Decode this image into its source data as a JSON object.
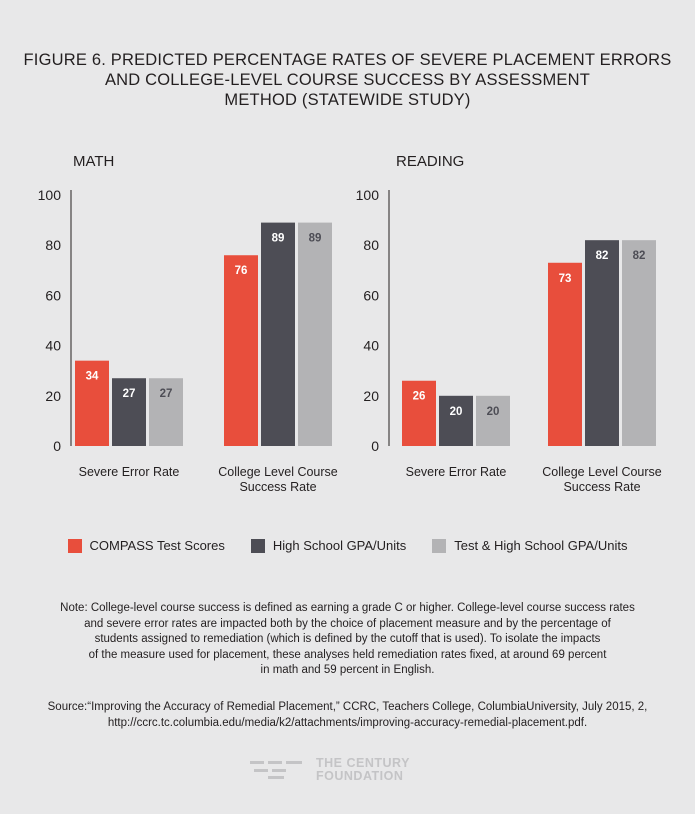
{
  "title_lines": [
    "FIGURE 6. PREDICTED PERCENTAGE RATES OF SEVERE PLACEMENT ERRORS",
    "AND COLLEGE-LEVEL COURSE SUCCESS BY ASSESSMENT",
    "METHOD (STATEWIDE STUDY)"
  ],
  "chart_data": [
    {
      "type": "bar",
      "title": "MATH",
      "categories": [
        [
          "Severe Error Rate"
        ],
        [
          "College Level Course",
          "Success Rate"
        ]
      ],
      "series": [
        {
          "name": "COMPASS Test Scores",
          "values": [
            34,
            76
          ]
        },
        {
          "name": "High School GPA/Units",
          "values": [
            27,
            89
          ]
        },
        {
          "name": "Test & High School GPA/Units",
          "values": [
            27,
            89
          ]
        }
      ],
      "ylim": [
        0,
        100
      ],
      "yticks": [
        "0",
        "20",
        "40",
        "60",
        "80",
        "100"
      ]
    },
    {
      "type": "bar",
      "title": "READING",
      "categories": [
        [
          "Severe Error Rate"
        ],
        [
          "College Level Course",
          "Success Rate"
        ]
      ],
      "series": [
        {
          "name": "COMPASS Test Scores",
          "values": [
            26,
            73
          ]
        },
        {
          "name": "High School GPA/Units",
          "values": [
            20,
            82
          ]
        },
        {
          "name": "Test & High School GPA/Units",
          "values": [
            20,
            82
          ]
        }
      ],
      "ylim": [
        0,
        100
      ],
      "yticks": [
        "0",
        "20",
        "40",
        "60",
        "80",
        "100"
      ]
    }
  ],
  "legend": [
    {
      "label": "COMPASS Test Scores",
      "color": "#e84e3c"
    },
    {
      "label": "High School GPA/Units",
      "color": "#4d4d55"
    },
    {
      "label": "Test & High School GPA/Units",
      "color": "#b3b3b5"
    }
  ],
  "note_lines": [
    "Note: College-level course success is defined as earning a grade C or higher. College-level course success rates",
    "and severe error rates are impacted both by the choice of placement measure and by the percentage of",
    "students assigned to remediation (which is defined by the cutoff that is used). To isolate the impacts",
    "of the measure used for placement, these analyses held remediation rates fixed, at around 69 percent",
    "in math and 59 percent in English."
  ],
  "source_lines": [
    "Source:“Improving the Accuracy of Remedial Placement,” CCRC, Teachers College, ColumbiaUniversity, July 2015, 2,",
    "http://ccrc.tc.columbia.edu/media/k2/attachments/improving-accuracy-remedial-placement.pdf."
  ],
  "logo": {
    "line1": "THE CENTURY",
    "line2": "FOUNDATION"
  }
}
